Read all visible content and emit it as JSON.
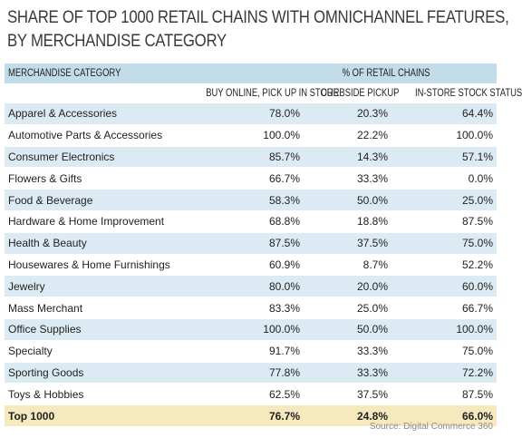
{
  "title_line1": "SHARE OF TOP 1000 RETAIL CHAINS WITH OMNICHANNEL FEATURES,",
  "title_line2": "BY MERCHANDISE CATEGORY",
  "header": {
    "category": "MERCHANDISE CATEGORY",
    "group": "% OF RETAIL CHAINS",
    "col1": "BUY ONLINE, PICK UP IN STORE",
    "col2": "CURBSIDE PICKUP",
    "col3": "IN-STORE STOCK STATUS"
  },
  "rows": [
    {
      "category": "Apparel & Accessories",
      "bopis": "78.0%",
      "curbside": "20.3%",
      "stock": "64.4%"
    },
    {
      "category": "Automotive Parts & Accessories",
      "bopis": "100.0%",
      "curbside": "22.2%",
      "stock": "100.0%"
    },
    {
      "category": "Consumer Electronics",
      "bopis": "85.7%",
      "curbside": "14.3%",
      "stock": "57.1%"
    },
    {
      "category": "Flowers & Gifts",
      "bopis": "66.7%",
      "curbside": "33.3%",
      "stock": "0.0%"
    },
    {
      "category": "Food & Beverage",
      "bopis": "58.3%",
      "curbside": "50.0%",
      "stock": "25.0%"
    },
    {
      "category": "Hardware & Home Improvement",
      "bopis": "68.8%",
      "curbside": "18.8%",
      "stock": "87.5%"
    },
    {
      "category": "Health & Beauty",
      "bopis": "87.5%",
      "curbside": "37.5%",
      "stock": "75.0%"
    },
    {
      "category": "Housewares & Home Furnishings",
      "bopis": "60.9%",
      "curbside": "8.7%",
      "stock": "52.2%"
    },
    {
      "category": "Jewelry",
      "bopis": "80.0%",
      "curbside": "20.0%",
      "stock": "60.0%"
    },
    {
      "category": "Mass Merchant",
      "bopis": "83.3%",
      "curbside": "25.0%",
      "stock": "66.7%"
    },
    {
      "category": "Office Supplies",
      "bopis": "100.0%",
      "curbside": "50.0%",
      "stock": "100.0%"
    },
    {
      "category": "Specialty",
      "bopis": "91.7%",
      "curbside": "33.3%",
      "stock": "75.0%"
    },
    {
      "category": "Sporting Goods",
      "bopis": "77.8%",
      "curbside": "33.3%",
      "stock": "72.2%"
    },
    {
      "category": "Toys & Hobbies",
      "bopis": "62.5%",
      "curbside": "37.5%",
      "stock": "87.5%"
    }
  ],
  "total": {
    "category": "Top 1000",
    "bopis": "76.7%",
    "curbside": "24.8%",
    "stock": "66.0%"
  },
  "source": "Source: Digital Commerce 360",
  "colors": {
    "header_band": "#c2dcea",
    "stripe": "#dcebf3",
    "total_row": "#f6e9bd"
  }
}
